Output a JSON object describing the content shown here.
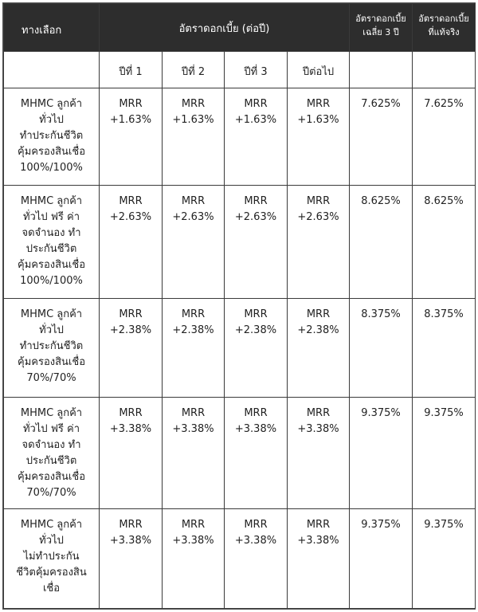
{
  "header": {
    "option": "ทางเลือก",
    "rate_per_year": "อัตราดอกเบี้ย (ต่อปี)",
    "avg3_line1": "อัตราดอกเบี้ย",
    "avg3_line2": "เฉลี่ย 3 ปี",
    "effective_line1": "อัตราดอกเบี้ย",
    "effective_line2": "ที่แท้จริง"
  },
  "subheader": [
    "ปีที่ 1",
    "ปีที่ 2",
    "ปีที่ 3",
    "ปีต่อไป"
  ],
  "rows": [
    {
      "option_lines": [
        "MHMC ลูกค้า",
        "ทั่วไป",
        "ทำประกันชีวิต",
        "คุ้มครองสินเชื่อ",
        "100%/100%"
      ],
      "years": [
        [
          "MRR",
          "+1.63%"
        ],
        [
          "MRR",
          "+1.63%"
        ],
        [
          "MRR",
          "+1.63%"
        ],
        [
          "MRR",
          "+1.63%"
        ]
      ],
      "avg3": "7.625%",
      "effective": "7.625%"
    },
    {
      "option_lines": [
        "MHMC ลูกค้า",
        "ทั่วไป ฟรี ค่า",
        "จดจำนอง ทำ",
        "ประกันชีวิต",
        "คุ้มครองสินเชื่อ",
        "100%/100%"
      ],
      "years": [
        [
          "MRR",
          "+2.63%"
        ],
        [
          "MRR",
          "+2.63%"
        ],
        [
          "MRR",
          "+2.63%"
        ],
        [
          "MRR",
          "+2.63%"
        ]
      ],
      "avg3": "8.625%",
      "effective": "8.625%"
    },
    {
      "option_lines": [
        "MHMC ลูกค้า",
        "ทั่วไป",
        "ทำประกันชีวิต",
        "คุ้มครองสินเชื่อ",
        "70%/70%"
      ],
      "years": [
        [
          "MRR",
          "+2.38%"
        ],
        [
          "MRR",
          "+2.38%"
        ],
        [
          "MRR",
          "+2.38%"
        ],
        [
          "MRR",
          "+2.38%"
        ]
      ],
      "avg3": "8.375%",
      "effective": "8.375%"
    },
    {
      "option_lines": [
        "MHMC ลูกค้า",
        "ทั่วไป ฟรี ค่า",
        "จดจำนอง ทำ",
        "ประกันชีวิต",
        "คุ้มครองสินเชื่อ",
        "70%/70%"
      ],
      "years": [
        [
          "MRR",
          "+3.38%"
        ],
        [
          "MRR",
          "+3.38%"
        ],
        [
          "MRR",
          "+3.38%"
        ],
        [
          "MRR",
          "+3.38%"
        ]
      ],
      "avg3": "9.375%",
      "effective": "9.375%"
    },
    {
      "option_lines": [
        "MHMC ลูกค้า",
        "ทั่วไป",
        "ไม่ทำประกัน",
        "ชีวิตคุ้มครองสิน",
        "เชื่อ"
      ],
      "years": [
        [
          "MRR",
          "+3.38%"
        ],
        [
          "MRR",
          "+3.38%"
        ],
        [
          "MRR",
          "+3.38%"
        ],
        [
          "MRR",
          "+3.38%"
        ]
      ],
      "avg3": "9.375%",
      "effective": "9.375%"
    }
  ]
}
